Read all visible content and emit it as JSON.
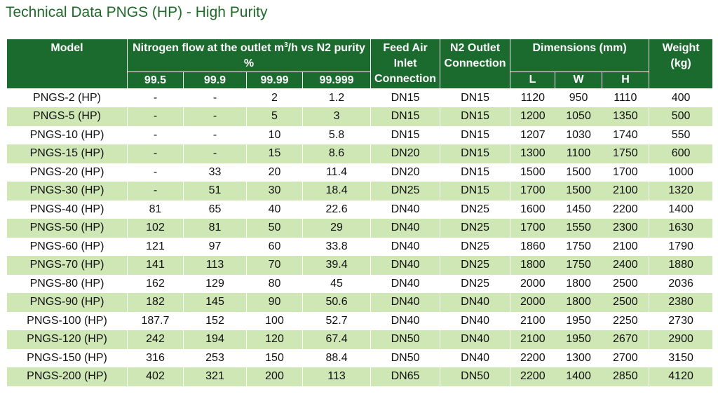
{
  "title": "Technical Data PNGS (HP) - High Purity",
  "headers": {
    "model": "Model",
    "flow_pre": "Nitrogen flow at the outlet m",
    "flow_sup": "3",
    "flow_post": "/h vs N2 purity %",
    "purities": [
      "99.5",
      "99.9",
      "99.99",
      "99.999"
    ],
    "feed_air": "Feed Air Inlet Connection",
    "n2_outlet": "N2 Outlet Connection",
    "dimensions": "Dimensions (mm)",
    "dims": [
      "L",
      "W",
      "H"
    ],
    "weight": "Weight (kg)"
  },
  "rows": [
    [
      "PNGS-2 (HP)",
      "-",
      "-",
      "2",
      "1.2",
      "DN15",
      "DN15",
      "1120",
      "950",
      "1110",
      "400"
    ],
    [
      "PNGS-5 (HP)",
      "-",
      "-",
      "5",
      "3",
      "DN15",
      "DN15",
      "1200",
      "1050",
      "1350",
      "500"
    ],
    [
      "PNGS-10 (HP)",
      "-",
      "-",
      "10",
      "5.8",
      "DN15",
      "DN15",
      "1207",
      "1030",
      "1740",
      "550"
    ],
    [
      "PNGS-15 (HP)",
      "-",
      "-",
      "15",
      "8.6",
      "DN20",
      "DN15",
      "1300",
      "1100",
      "1750",
      "600"
    ],
    [
      "PNGS-20 (HP)",
      "-",
      "33",
      "20",
      "11.4",
      "DN20",
      "DN15",
      "1500",
      "1500",
      "1700",
      "1000"
    ],
    [
      "PNGS-30 (HP)",
      "-",
      "51",
      "30",
      "18.4",
      "DN25",
      "DN15",
      "1700",
      "1500",
      "2100",
      "1320"
    ],
    [
      "PNGS-40 (HP)",
      "81",
      "65",
      "40",
      "22.6",
      "DN40",
      "DN25",
      "1600",
      "1450",
      "2200",
      "1400"
    ],
    [
      "PNGS-50 (HP)",
      "102",
      "81",
      "50",
      "29",
      "DN40",
      "DN25",
      "1700",
      "1550",
      "2300",
      "1630"
    ],
    [
      "PNGS-60 (HP)",
      "121",
      "97",
      "60",
      "33.8",
      "DN40",
      "DN25",
      "1860",
      "1750",
      "2100",
      "1790"
    ],
    [
      "PNGS-70 (HP)",
      "141",
      "113",
      "70",
      "39.4",
      "DN40",
      "DN25",
      "1800",
      "1750",
      "2400",
      "1880"
    ],
    [
      "PNGS-80 (HP)",
      "162",
      "129",
      "80",
      "45",
      "DN40",
      "DN25",
      "2000",
      "1800",
      "2500",
      "2036"
    ],
    [
      "PNGS-90 (HP)",
      "182",
      "145",
      "90",
      "50.6",
      "DN40",
      "DN40",
      "2000",
      "1800",
      "2500",
      "2380"
    ],
    [
      "PNGS-100 (HP)",
      "187.7",
      "152",
      "100",
      "52.7",
      "DN40",
      "DN40",
      "2100",
      "1950",
      "2250",
      "2730"
    ],
    [
      "PNGS-120 (HP)",
      "242",
      "194",
      "120",
      "67.4",
      "DN50",
      "DN40",
      "2100",
      "1950",
      "2670",
      "2900"
    ],
    [
      "PNGS-150 (HP)",
      "316",
      "253",
      "150",
      "88.4",
      "DN50",
      "DN40",
      "2200",
      "1300",
      "2700",
      "3150"
    ],
    [
      "PNGS-200 (HP)",
      "402",
      "321",
      "200",
      "113",
      "DN65",
      "DN50",
      "2200",
      "1400",
      "2850",
      "4120"
    ]
  ]
}
